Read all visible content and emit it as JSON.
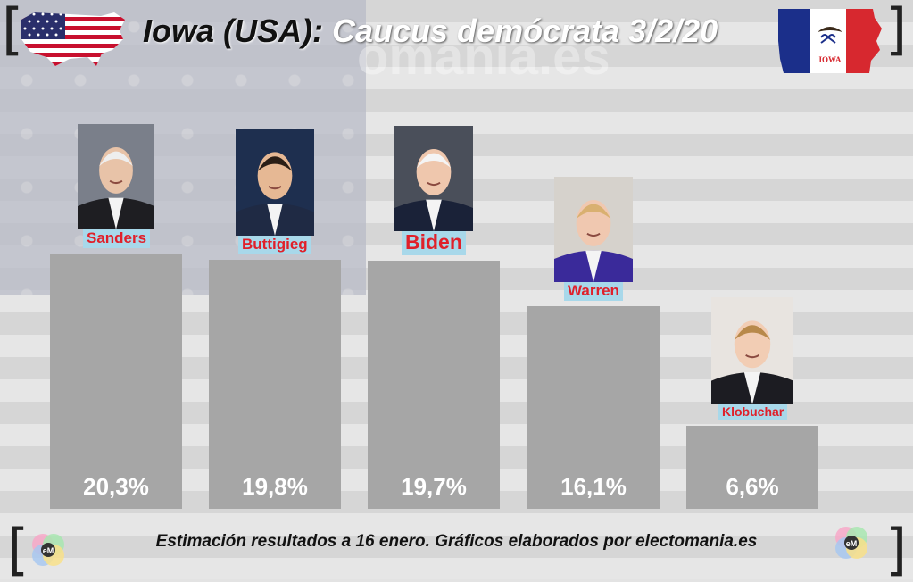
{
  "header": {
    "title_part1": "Iowa (USA):",
    "title_part2": "Caucus demócrata 3/2/20",
    "watermark": "omania.es",
    "iowa_flag_text": "IOWA"
  },
  "footer": {
    "text": "Estimación resultados a 16 enero. Gráficos elaborados por electomania.es",
    "logo_text": "eM"
  },
  "colors": {
    "bar": "#a6a6a6",
    "label_bg": "#a8d8ea",
    "label_text": "#e0202a"
  },
  "chart_data": {
    "type": "bar",
    "title": "Iowa (USA): Caucus demócrata 3/2/20",
    "categories": [
      "Sanders",
      "Buttigieg",
      "Biden",
      "Warren",
      "Klobuchar"
    ],
    "values": [
      20.3,
      19.8,
      19.7,
      16.1,
      6.6
    ],
    "value_labels": [
      "20,3%",
      "19,8%",
      "19,7%",
      "16,1%",
      "6,6%"
    ],
    "unit": "%",
    "ylim": [
      0,
      25
    ],
    "grid": false,
    "legend": "none"
  }
}
